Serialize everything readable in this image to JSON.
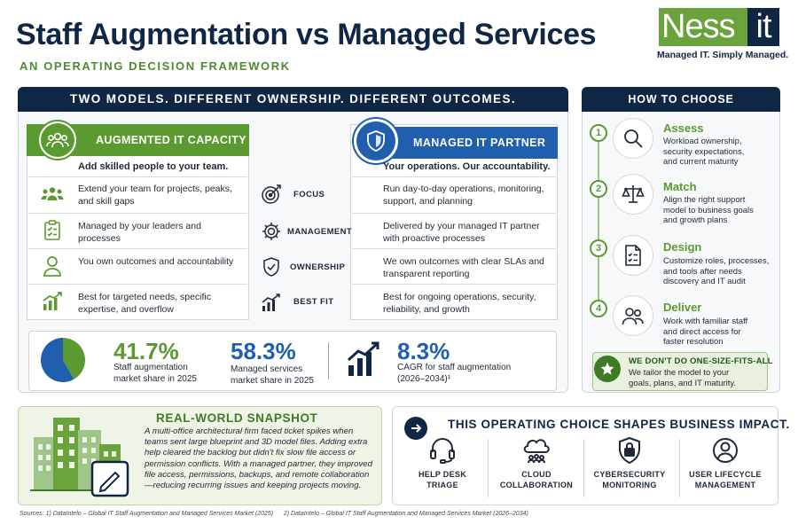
{
  "header": {
    "title": "Staff Augmentation vs Managed Services",
    "subtitle": "AN OPERATING DECISION FRAMEWORK"
  },
  "logo": {
    "part1": "Ness",
    "part2": "it",
    "tagline": "Managed IT. Simply Managed."
  },
  "comparison": {
    "banner": "TWO MODELS. DIFFERENT OWNERSHIP. DIFFERENT OUTCOMES.",
    "left": {
      "title": "AUGMENTED IT CAPACITY",
      "intro": "Add skilled people to your team.",
      "rows": [
        {
          "icon": "team-icon",
          "text": "Extend your team for projects, peaks, and skill gaps"
        },
        {
          "icon": "checklist-icon",
          "text": "Managed by your leaders and processes"
        },
        {
          "icon": "person-icon",
          "text": "You own outcomes and accountability"
        },
        {
          "icon": "growth-chart-icon",
          "text": "Best for targeted needs, specific expertise, and overflow"
        }
      ]
    },
    "right": {
      "title": "MANAGED IT PARTNER",
      "intro": "Your operations. Our accountability.",
      "rows": [
        {
          "text": "Run day-to-day operations, monitoring, support, and planning"
        },
        {
          "text": "Delivered by your managed IT partner with proactive processes"
        },
        {
          "text": "We own outcomes with clear SLAs and transparent reporting"
        },
        {
          "text": "Best for ongoing operations, security, reliability, and growth"
        }
      ]
    },
    "criteria": [
      {
        "icon": "target-icon",
        "label": "FOCUS"
      },
      {
        "icon": "gear-icon",
        "label": "MANAGEMENT"
      },
      {
        "icon": "shield-check-icon",
        "label": "OWNERSHIP"
      },
      {
        "icon": "bar-chart-icon",
        "label": "BEST FIT"
      }
    ]
  },
  "stats": [
    {
      "value": "41.7%",
      "label1": "Staff augmentation",
      "label2": "market share in 2025",
      "color": "#5a9a31"
    },
    {
      "value": "58.3%",
      "label1": "Managed services",
      "label2": "market share in 2025",
      "color": "#1f5fae"
    },
    {
      "value": "8.3%",
      "label1": "CAGR for staff augmentation",
      "label2": "(2026–2034)¹",
      "color": "#1f5fae"
    }
  ],
  "pie": {
    "staff_augmentation": 41.7,
    "managed_services": 58.3
  },
  "how_to_choose": {
    "heading": "HOW TO CHOOSE",
    "steps": [
      {
        "num": "1",
        "icon": "magnifier-icon",
        "title": "Assess",
        "desc": [
          "Workload ownership,",
          "security expectations,",
          "and current maturity"
        ]
      },
      {
        "num": "2",
        "icon": "scales-icon",
        "title": "Match",
        "desc": [
          "Align the right support",
          "model to business goals",
          "and growth plans"
        ]
      },
      {
        "num": "3",
        "icon": "document-icon",
        "title": "Design",
        "desc": [
          "Customize roles, processes,",
          "and tools after needs",
          "discovery and IT audit"
        ]
      },
      {
        "num": "4",
        "icon": "people-icon",
        "title": "Deliver",
        "desc": [
          "Work with familiar staff",
          "and direct access for",
          "faster resolution"
        ]
      }
    ],
    "callout_title": "WE DON'T DO ONE-SIZE-FITS-ALL",
    "callout_desc": [
      "We tailor the model to your",
      "goals, plans, and IT maturity."
    ]
  },
  "snapshot": {
    "title": "REAL-WORLD SNAPSHOT",
    "body": "A multi-office architectural firm faced ticket spikes when teams sent large blueprint and 3D model files. Adding extra help cleared the backlog but didn't fix slow file access or permission conflicts. With a managed partner, they improved file access, permissions, backups, and remote collaboration—reducing recurring issues and keeping projects moving."
  },
  "impact": {
    "title": "THIS OPERATING CHOICE SHAPES BUSINESS IMPACT.",
    "items": [
      {
        "icon": "headset-icon",
        "line1": "HELP DESK",
        "line2": "TRIAGE"
      },
      {
        "icon": "cloud-icon",
        "line1": "CLOUD",
        "line2": "COLLABORATION"
      },
      {
        "icon": "lock-shield-icon",
        "line1": "CYBERSECURITY",
        "line2": "MONITORING"
      },
      {
        "icon": "user-circle-icon",
        "line1": "USER LIFECYCLE",
        "line2": "MANAGEMENT"
      }
    ]
  },
  "sources": {
    "s1": "Sources: 1) DataIntelo – Global IT Staff Augmentation and Managed Services Market (2025)",
    "s2": "2) DataIntelo – Global IT Staff Augmentation and Managed Services Market (2026–2034)"
  },
  "colors": {
    "navy": "#0f2744",
    "green": "#5a9a31",
    "blue": "#1f5fae"
  }
}
